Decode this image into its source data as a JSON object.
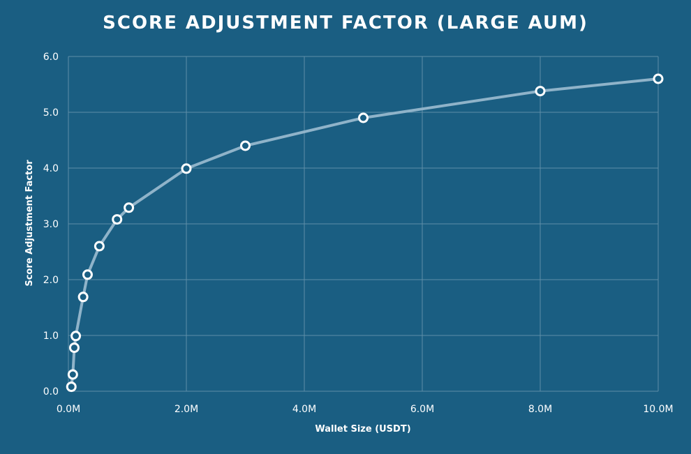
{
  "chart_data": {
    "type": "line",
    "title": "SCORE ADJUSTMENT FACTOR (LARGE AUM)",
    "xlabel": "Wallet Size (USDT)",
    "ylabel": "Score Adjustment Factor",
    "xlim": [
      0,
      10000000
    ],
    "ylim": [
      0,
      6
    ],
    "x_ticks": [
      0,
      2000000,
      4000000,
      6000000,
      8000000,
      10000000
    ],
    "x_tick_labels": [
      "0.0M",
      "2.0M",
      "4.0M",
      "6.0M",
      "8.0M",
      "10.0M"
    ],
    "y_ticks": [
      0,
      1,
      2,
      3,
      4,
      5,
      6
    ],
    "y_tick_labels": [
      "0.0",
      "1.0",
      "2.0",
      "3.0",
      "4.0",
      "5.0",
      "6.0"
    ],
    "grid": true,
    "series": [
      {
        "x": [
          50000,
          75000,
          100000,
          125000,
          250000,
          325000,
          525000,
          825000,
          1025000,
          2000000,
          3000000,
          5000000,
          8000000,
          10000000
        ],
        "values": [
          0.08,
          0.3,
          0.78,
          0.99,
          1.69,
          2.09,
          2.6,
          3.08,
          3.29,
          3.99,
          4.4,
          4.9,
          5.38,
          5.6
        ]
      }
    ],
    "colors": {
      "background": "#1a5e82",
      "grid": "#5f8ea8",
      "line": "#8fb3c9",
      "marker_fill": "#1a5e82",
      "marker_stroke": "#ffffff"
    }
  }
}
